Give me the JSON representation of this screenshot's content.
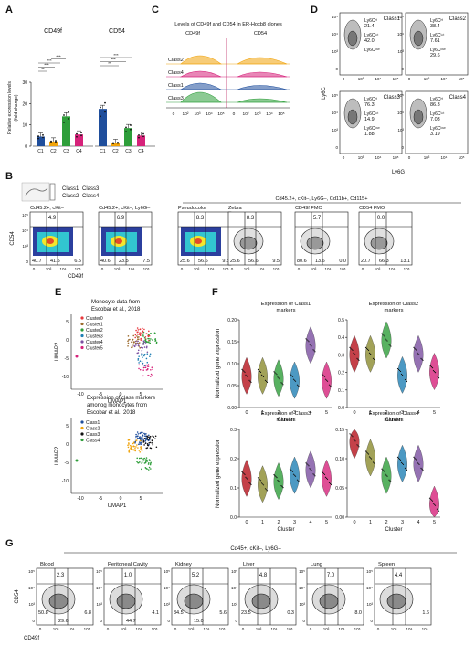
{
  "colors": {
    "class1": "#1f4e9c",
    "class2": "#f0a30a",
    "class3": "#2e9e3a",
    "class4": "#d6227a",
    "fmo_blue": "#1f5fae"
  },
  "panel_letters": [
    "A",
    "B",
    "C",
    "D",
    "E",
    "F",
    "G"
  ],
  "panelA": {
    "ylabel_line1": "Relative expression levels",
    "ylabel_line2": "(fold change)",
    "yticks": [
      "0",
      "10",
      "20",
      "30"
    ],
    "charts": [
      {
        "title": "CD49f",
        "categories": [
          "C1",
          "C2",
          "C3",
          "C4"
        ],
        "values": [
          4.5,
          2.2,
          14.0,
          5.5
        ]
      },
      {
        "title": "CD54",
        "categories": [
          "C1",
          "C2",
          "C3",
          "C4"
        ],
        "values": [
          17.5,
          1.5,
          8.5,
          5.0
        ]
      }
    ],
    "sig": [
      "**",
      "***",
      "***",
      "***",
      "**",
      "***",
      "***"
    ]
  },
  "panelC": {
    "title": "Levels of CD49f and CD54 in ER-Hoxb8 clones",
    "sub1": "CD49f",
    "sub2": "CD54",
    "rows": [
      "Class2",
      "Class4",
      "Class1",
      "Class3"
    ],
    "xticks": [
      "0",
      "10²",
      "10³",
      "10⁴",
      "10⁵"
    ]
  },
  "panelD": {
    "xlabel": "Ly6G",
    "ylabel": "Ly6C",
    "quads": [
      {
        "cls": "Class1",
        "vals": [
          "Ly6Cʰⁱ",
          "21.4",
          "Ly6Cⁱⁿᵗ",
          "42.0",
          "Ly6Cˡᵒʷ"
        ]
      },
      {
        "cls": "Class2",
        "vals": [
          "Ly6Cʰⁱ",
          "38.4",
          "Ly6Cⁱⁿᵗ",
          "7.61",
          "Ly6Cˡᵒʷ",
          "29.6"
        ]
      },
      {
        "cls": "Class3",
        "vals": [
          "Ly6Cʰⁱ",
          "76.3",
          "Ly6Cⁱⁿᵗ",
          "14.9",
          "Ly6Cˡᵒʷ",
          "1.88"
        ]
      },
      {
        "cls": "Class4",
        "vals": [
          "Ly6Cʰⁱ",
          "86.3",
          "Ly6Cⁱⁿᵗ",
          "7.03",
          "Ly6Cˡᵒʷ",
          "3.19"
        ]
      }
    ],
    "class1_hi": "Ly6Cʰⁱ",
    "class1_hi_val": "",
    "yticks": [
      "10⁵",
      "10⁴",
      "10³",
      "0"
    ],
    "xticks": [
      "0",
      "10³",
      "10⁴",
      "10⁵"
    ]
  },
  "panelB": {
    "legend": [
      "Class1",
      "Class3",
      "Class2",
      "Class4"
    ],
    "group_header": "Cd45.2+, cKit–, Ly6G–, Cd11b+, Cd115+",
    "ylabel": "CD54",
    "xlabel": "CD49f",
    "plots": [
      {
        "title": "Cd45.2+, cKit–",
        "top": "4.9",
        "bl": "40.7",
        "bm": "41.5",
        "br": "6.5"
      },
      {
        "title": "Cd45.2+, cKit–, Ly6G–",
        "top": "6.9",
        "bl": "40.6",
        "bm": "23.5",
        "br": "7.5"
      },
      {
        "title": "Pseudocolor",
        "top": "8.3",
        "bl": "25.6",
        "bm": "56.6",
        "br": "9.5"
      },
      {
        "title": "Zebra",
        "top": "8.3",
        "bl": "25.6",
        "bm": "56.6",
        "br": "9.5"
      },
      {
        "title": "CD49f FMO",
        "top": "5.7",
        "bl": "80.6",
        "bm": "13.6",
        "br": "0.0"
      },
      {
        "title": "CD54 FMO",
        "top": "0.0",
        "bl": "20.7",
        "bm": "66.3",
        "br": "13.1"
      }
    ],
    "yticks": [
      "10⁵",
      "10⁴",
      "10³",
      "0"
    ],
    "xticks": [
      "0",
      "10³",
      "10⁴",
      "10⁵"
    ]
  },
  "panelE": {
    "title1_line1": "Monocyte data from",
    "title1_line2": "Escobar et al., 2018",
    "legend1": [
      "Cluster0",
      "Cluster1",
      "Cluster2",
      "Cluster3",
      "Cluster4",
      "Cluster5"
    ],
    "legend1_colors": [
      "#e8383d",
      "#9c6b2e",
      "#2e9e3a",
      "#1f7fb4",
      "#7a4fa0",
      "#d6227a"
    ],
    "title2_line1": "Expression of class markers",
    "title2_line2": "amonog monocytes from",
    "title2_line3": "Escobar et al., 2018",
    "legend2": [
      "Class1",
      "Class2",
      "Class3",
      "Class4"
    ],
    "xlabel": "UMAP1",
    "ylabel": "UMAP2",
    "xticks": [
      "-10",
      "-5",
      "0",
      "5"
    ],
    "yticks1": [
      "5",
      "0",
      "-5",
      "-10"
    ],
    "yticks2": [
      "5",
      "0",
      "-5",
      "-10"
    ]
  },
  "panelF": {
    "ylabel": "Normalized gene expression",
    "xlabel": "Cluster",
    "cluster_colors": [
      "#b5121b",
      "#8b8b2e",
      "#2e9e3a",
      "#1f7fb4",
      "#7a4fa0",
      "#d6227a"
    ],
    "chart_data": [
      {
        "type": "violin",
        "title_line1": "Expression of Class1",
        "title_line2": "markers",
        "categories": [
          "0",
          "1",
          "2",
          "3",
          "4",
          "5"
        ],
        "medians": [
          0.07,
          0.07,
          0.065,
          0.06,
          0.14,
          0.06
        ],
        "ylim": [
          0,
          0.2
        ],
        "yticks": [
          "0.00",
          "0.05",
          "0.10",
          "0.15",
          "0.20"
        ]
      },
      {
        "type": "violin",
        "title_line1": "Expression of Class2",
        "title_line2": "markers",
        "categories": [
          "0",
          "1",
          "2",
          "3",
          "4",
          "5"
        ],
        "medians": [
          0.3,
          0.3,
          0.38,
          0.18,
          0.3,
          0.2
        ],
        "ylim": [
          0,
          0.5
        ],
        "yticks": [
          "0.0",
          "0.1",
          "0.2",
          "0.3",
          "0.4",
          "0.5"
        ]
      },
      {
        "type": "violin",
        "title_line1": "Expression of Class3",
        "title_line2": "markers",
        "categories": [
          "0",
          "1",
          "2",
          "3",
          "4",
          "5"
        ],
        "medians": [
          0.13,
          0.11,
          0.12,
          0.14,
          0.16,
          0.13
        ],
        "ylim": [
          0,
          0.3
        ],
        "yticks": [
          "0.0",
          "0.1",
          "0.2",
          "0.3"
        ]
      },
      {
        "type": "violin",
        "title_line1": "Expression of Class4",
        "title_line2": "markers",
        "categories": [
          "0",
          "1",
          "2",
          "3",
          "4",
          "5"
        ],
        "medians": [
          0.13,
          0.1,
          0.07,
          0.09,
          0.09,
          0.02
        ],
        "ylim": [
          0,
          0.15
        ],
        "yticks": [
          "0.00",
          "0.05",
          "0.10",
          "0.15"
        ]
      }
    ]
  },
  "panelG": {
    "header": "Cd45+, cKit–, Ly6G–",
    "ylabel": "CD54",
    "xlabel": "CD49f",
    "plots": [
      {
        "title": "Blood",
        "top": "2.3",
        "bl": "50.8",
        "bm": "29.6",
        "br": "6.8"
      },
      {
        "title": "Peritoneal Cavity",
        "top": "1.0",
        "bl": "",
        "bm": "44.7",
        "br": "4.1"
      },
      {
        "title": "Kidney",
        "top": "5.2",
        "bl": "34.5",
        "bm": "15.0",
        "br": "5.6"
      },
      {
        "title": "Liver",
        "top": "4.8",
        "bl": "23.5",
        "bm": "",
        "br": "0.3"
      },
      {
        "title": "Lung",
        "top": "7.0",
        "bl": "",
        "bm": "",
        "br": "8.0"
      },
      {
        "title": "Spleen",
        "top": "4.4",
        "bl": "",
        "bm": "",
        "br": "1.6"
      }
    ],
    "yticks": [
      "10⁵",
      "10⁴",
      "10³",
      "0"
    ],
    "xticks": [
      "0",
      "10³",
      "10⁴",
      "10⁵"
    ]
  }
}
